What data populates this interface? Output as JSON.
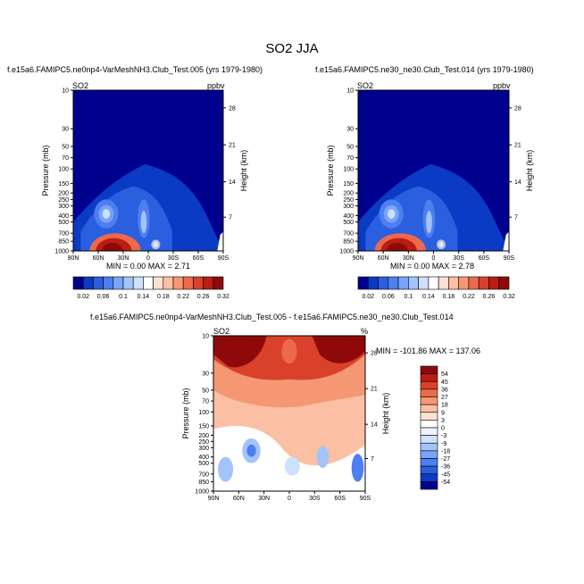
{
  "page_title": "SO2 JJA",
  "chart_data": [
    {
      "type": "heatmap",
      "title": "f.e15a6.FAMIPC5.ne0np4-VarMeshNH3.Club_Test.005 (yrs 1979-1980)",
      "variable": "SO2",
      "units": "ppbv",
      "ylabel": "Pressure (mb)",
      "ylabel_right": "Height (km)",
      "x_ticks": [
        "90N",
        "60N",
        "30N",
        "0",
        "30S",
        "60S",
        "90S"
      ],
      "y_ticks": [
        "10",
        "30",
        "50",
        "70",
        "100",
        "150",
        "200",
        "250",
        "300",
        "400",
        "500",
        "700",
        "850",
        "1000"
      ],
      "y_ticks_right": [
        "28",
        "21",
        "14",
        "7"
      ],
      "stats": "MIN =   0.00  MAX =   2.71",
      "colorbar": {
        "labels": [
          "0.02",
          "0.06",
          "0.1",
          "0.14",
          "0.18",
          "0.22",
          "0.26",
          "0.32"
        ],
        "colors": [
          "#00008f",
          "#0b3bc4",
          "#2a5fe0",
          "#4d7ff0",
          "#7aa4f7",
          "#a3c3fb",
          "#cfe0fd",
          "#ffffff",
          "#fde0d2",
          "#fbbfa3",
          "#f59772",
          "#ec6a4b",
          "#d9412b",
          "#bb1d13",
          "#8e0a0a"
        ]
      }
    },
    {
      "type": "heatmap",
      "title": "f.e15a6.FAMIPC5.ne30_ne30.Club_Test.014 (yrs 1979-1980)",
      "variable": "SO2",
      "units": "ppbv",
      "ylabel": "Pressure (mb)",
      "ylabel_right": "Height (km)",
      "x_ticks": [
        "90N",
        "60N",
        "30N",
        "0",
        "30S",
        "60S",
        "90S"
      ],
      "y_ticks": [
        "10",
        "30",
        "50",
        "70",
        "100",
        "150",
        "200",
        "250",
        "300",
        "400",
        "500",
        "700",
        "850",
        "1000"
      ],
      "y_ticks_right": [
        "28",
        "21",
        "14",
        "7"
      ],
      "stats": "MIN =   0.00  MAX =   2.78",
      "colorbar": {
        "labels": [
          "0.02",
          "0.06",
          "0.1",
          "0.14",
          "0.18",
          "0.22",
          "0.26",
          "0.32"
        ],
        "colors": [
          "#00008f",
          "#0b3bc4",
          "#2a5fe0",
          "#4d7ff0",
          "#7aa4f7",
          "#a3c3fb",
          "#cfe0fd",
          "#ffffff",
          "#fde0d2",
          "#fbbfa3",
          "#f59772",
          "#ec6a4b",
          "#d9412b",
          "#bb1d13",
          "#8e0a0a"
        ]
      }
    },
    {
      "type": "heatmap",
      "title": "f.e15a6.FAMIPC5.ne0np4-VarMeshNH3.Club_Test.005 - f.e15a6.FAMIPC5.ne30_ne30.Club_Test.014",
      "variable": "SO2",
      "units": "%",
      "ylabel": "Pressure (mb)",
      "ylabel_right": "Height (km)",
      "x_ticks": [
        "90N",
        "60N",
        "30N",
        "0",
        "30S",
        "60S",
        "90S"
      ],
      "y_ticks": [
        "10",
        "30",
        "50",
        "70",
        "100",
        "150",
        "200",
        "250",
        "300",
        "400",
        "500",
        "700",
        "850",
        "1000"
      ],
      "y_ticks_right": [
        "28",
        "21",
        "14",
        "7"
      ],
      "stats": "MIN = -101.86  MAX = 137.06",
      "colorbar": {
        "labels": [
          "54",
          "45",
          "36",
          "27",
          "18",
          "9",
          "3",
          "0",
          "-3",
          "-9",
          "-18",
          "-27",
          "-36",
          "-45",
          "-54"
        ],
        "colors": [
          "#8e0a0a",
          "#bb1d13",
          "#d9412b",
          "#ec6a4b",
          "#f59772",
          "#fbbfa3",
          "#fde0d2",
          "#ffffff",
          "#eef3fd",
          "#cfe0fd",
          "#a3c3fb",
          "#7aa4f7",
          "#4d7ff0",
          "#2a5fe0",
          "#0b3bc4",
          "#00008f"
        ]
      }
    }
  ]
}
